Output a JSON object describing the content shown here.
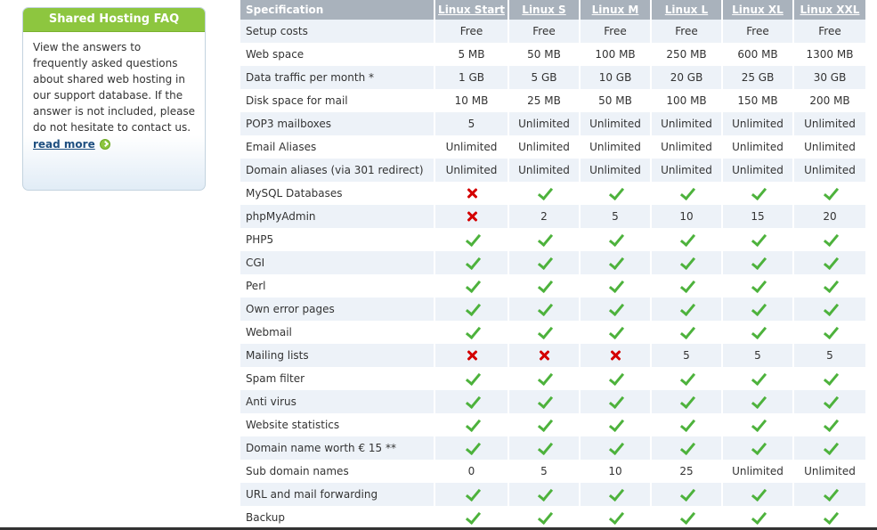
{
  "faq": {
    "title": "Shared Hosting FAQ",
    "text": "View the answers to frequently asked questions about shared web hosting in our support database. If the answer is not included, please do not hesitate to contact us.",
    "read_more": "read more",
    "icon": "arrow-circle-right-icon"
  },
  "table": {
    "header": [
      "Specification",
      "Linux Start",
      "Linux S",
      "Linux M",
      "Linux L",
      "Linux XL",
      "Linux XXL"
    ],
    "rows": [
      {
        "label": "Setup costs",
        "values": [
          "Free",
          "Free",
          "Free",
          "Free",
          "Free",
          "Free"
        ]
      },
      {
        "label": "Web space",
        "values": [
          "5 MB",
          "50 MB",
          "100 MB",
          "250 MB",
          "600 MB",
          "1300 MB"
        ]
      },
      {
        "label": "Data traffic per month *",
        "values": [
          "1 GB",
          "5 GB",
          "10 GB",
          "20 GB",
          "25 GB",
          "30 GB"
        ]
      },
      {
        "label": "Disk space for mail",
        "values": [
          "10 MB",
          "25 MB",
          "50 MB",
          "100 MB",
          "150 MB",
          "200 MB"
        ]
      },
      {
        "label": "POP3 mailboxes",
        "values": [
          "5",
          "Unlimited",
          "Unlimited",
          "Unlimited",
          "Unlimited",
          "Unlimited"
        ]
      },
      {
        "label": "Email Aliases",
        "values": [
          "Unlimited",
          "Unlimited",
          "Unlimited",
          "Unlimited",
          "Unlimited",
          "Unlimited"
        ]
      },
      {
        "label": "Domain aliases (via 301 redirect)",
        "values": [
          "Unlimited",
          "Unlimited",
          "Unlimited",
          "Unlimited",
          "Unlimited",
          "Unlimited"
        ]
      },
      {
        "label": "MySQL Databases",
        "values": [
          "cross",
          "check",
          "check",
          "check",
          "check",
          "check"
        ]
      },
      {
        "label": "phpMyAdmin",
        "values": [
          "cross",
          "2",
          "5",
          "10",
          "15",
          "20"
        ]
      },
      {
        "label": "PHP5",
        "values": [
          "check",
          "check",
          "check",
          "check",
          "check",
          "check"
        ]
      },
      {
        "label": "CGI",
        "values": [
          "check",
          "check",
          "check",
          "check",
          "check",
          "check"
        ]
      },
      {
        "label": "Perl",
        "values": [
          "check",
          "check",
          "check",
          "check",
          "check",
          "check"
        ]
      },
      {
        "label": "Own error pages",
        "values": [
          "check",
          "check",
          "check",
          "check",
          "check",
          "check"
        ]
      },
      {
        "label": "Webmail",
        "values": [
          "check",
          "check",
          "check",
          "check",
          "check",
          "check"
        ]
      },
      {
        "label": "Mailing lists",
        "values": [
          "cross",
          "cross",
          "cross",
          "5",
          "5",
          "5"
        ]
      },
      {
        "label": "Spam filter",
        "values": [
          "check",
          "check",
          "check",
          "check",
          "check",
          "check"
        ]
      },
      {
        "label": "Anti virus",
        "values": [
          "check",
          "check",
          "check",
          "check",
          "check",
          "check"
        ]
      },
      {
        "label": "Website statistics",
        "values": [
          "check",
          "check",
          "check",
          "check",
          "check",
          "check"
        ]
      },
      {
        "label": "Domain name worth € 15 **",
        "values": [
          "check",
          "check",
          "check",
          "check",
          "check",
          "check"
        ]
      },
      {
        "label": "Sub domain names",
        "values": [
          "0",
          "5",
          "10",
          "25",
          "Unlimited",
          "Unlimited"
        ]
      },
      {
        "label": "URL and mail forwarding",
        "values": [
          "check",
          "check",
          "check",
          "check",
          "check",
          "check"
        ]
      },
      {
        "label": "Backup",
        "values": [
          "check",
          "check",
          "check",
          "check",
          "check",
          "check"
        ]
      }
    ]
  },
  "colors": {
    "faq_header": "#8dc63f",
    "table_header": "#a9b2bc",
    "row_alt": "#edf2f8",
    "check": "#4db23c",
    "cross": "#d40000"
  }
}
